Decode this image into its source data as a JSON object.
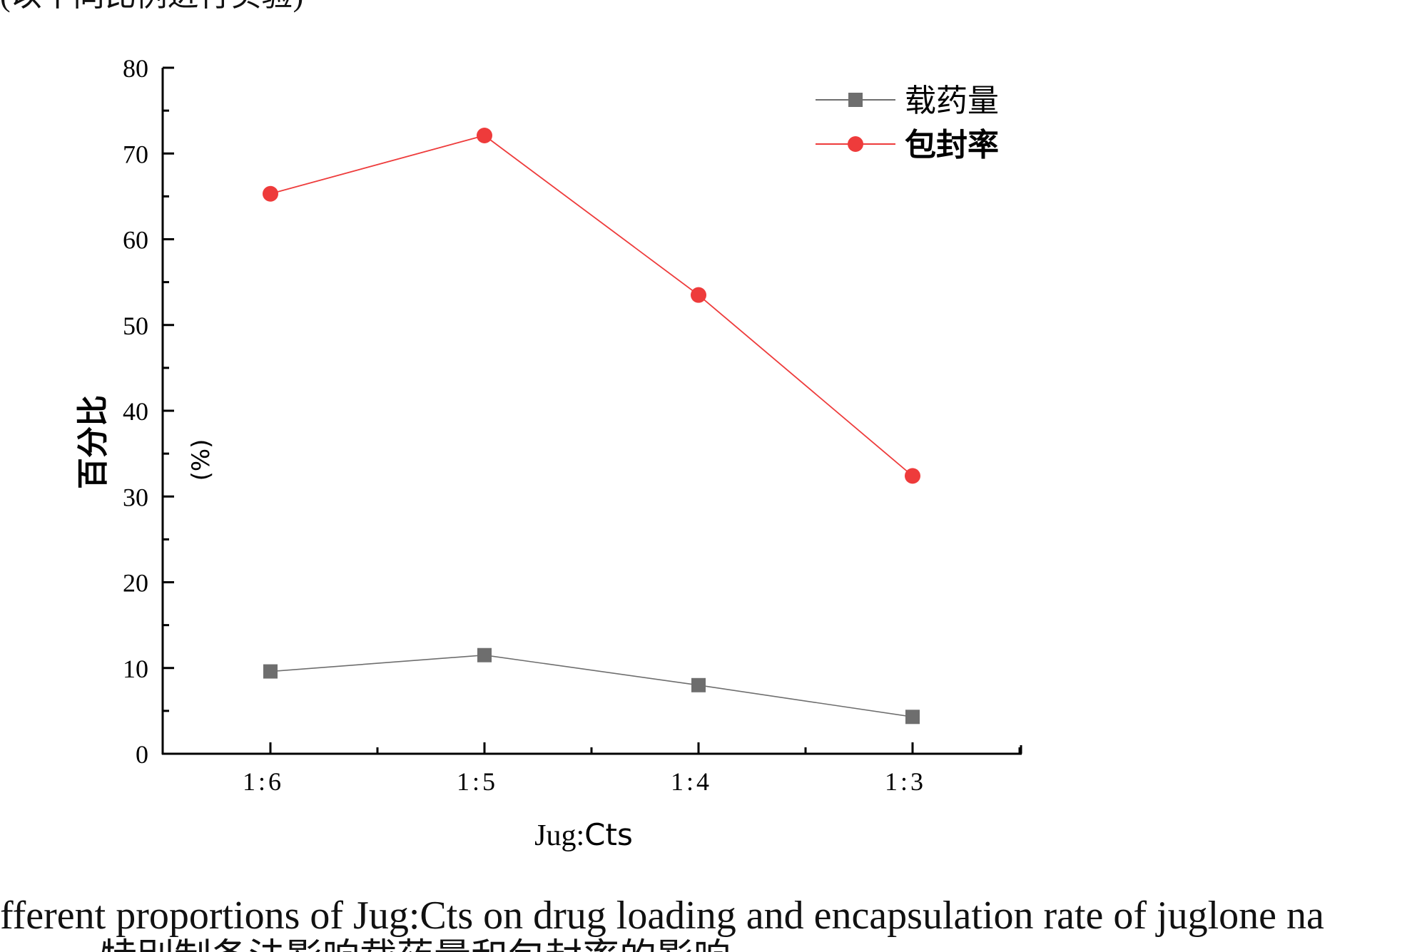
{
  "top_fragment": "(以不同比例进行实验)",
  "caption_en": "fferent proportions of Jug:Cts on drug loading and encapsulation rate of juglone na",
  "caption_cn": "特别制备法影响载药量和包封率的影响",
  "chart_data": {
    "type": "line",
    "categories": [
      "1:6",
      "1:5",
      "1:4",
      "1:3"
    ],
    "series": [
      {
        "name": "载药量",
        "values": [
          9.6,
          11.5,
          8.0,
          4.3
        ],
        "color": "#6e6e6e",
        "marker": "square"
      },
      {
        "name": "包封率",
        "values": [
          65.3,
          72.1,
          53.5,
          32.4
        ],
        "color": "#ee3b3b",
        "marker": "circle"
      }
    ],
    "ylim": [
      0,
      80
    ],
    "yticks": [
      "0",
      "10",
      "20",
      "30",
      "40",
      "50",
      "60",
      "70",
      "80"
    ],
    "ylabel": "百分比",
    "ylabel_unit": "(%)",
    "xlabel_part1": "Jug",
    "xlabel_sep": ":",
    "xlabel_part2": "Cts",
    "legend_position": "top-right",
    "grid": false
  }
}
